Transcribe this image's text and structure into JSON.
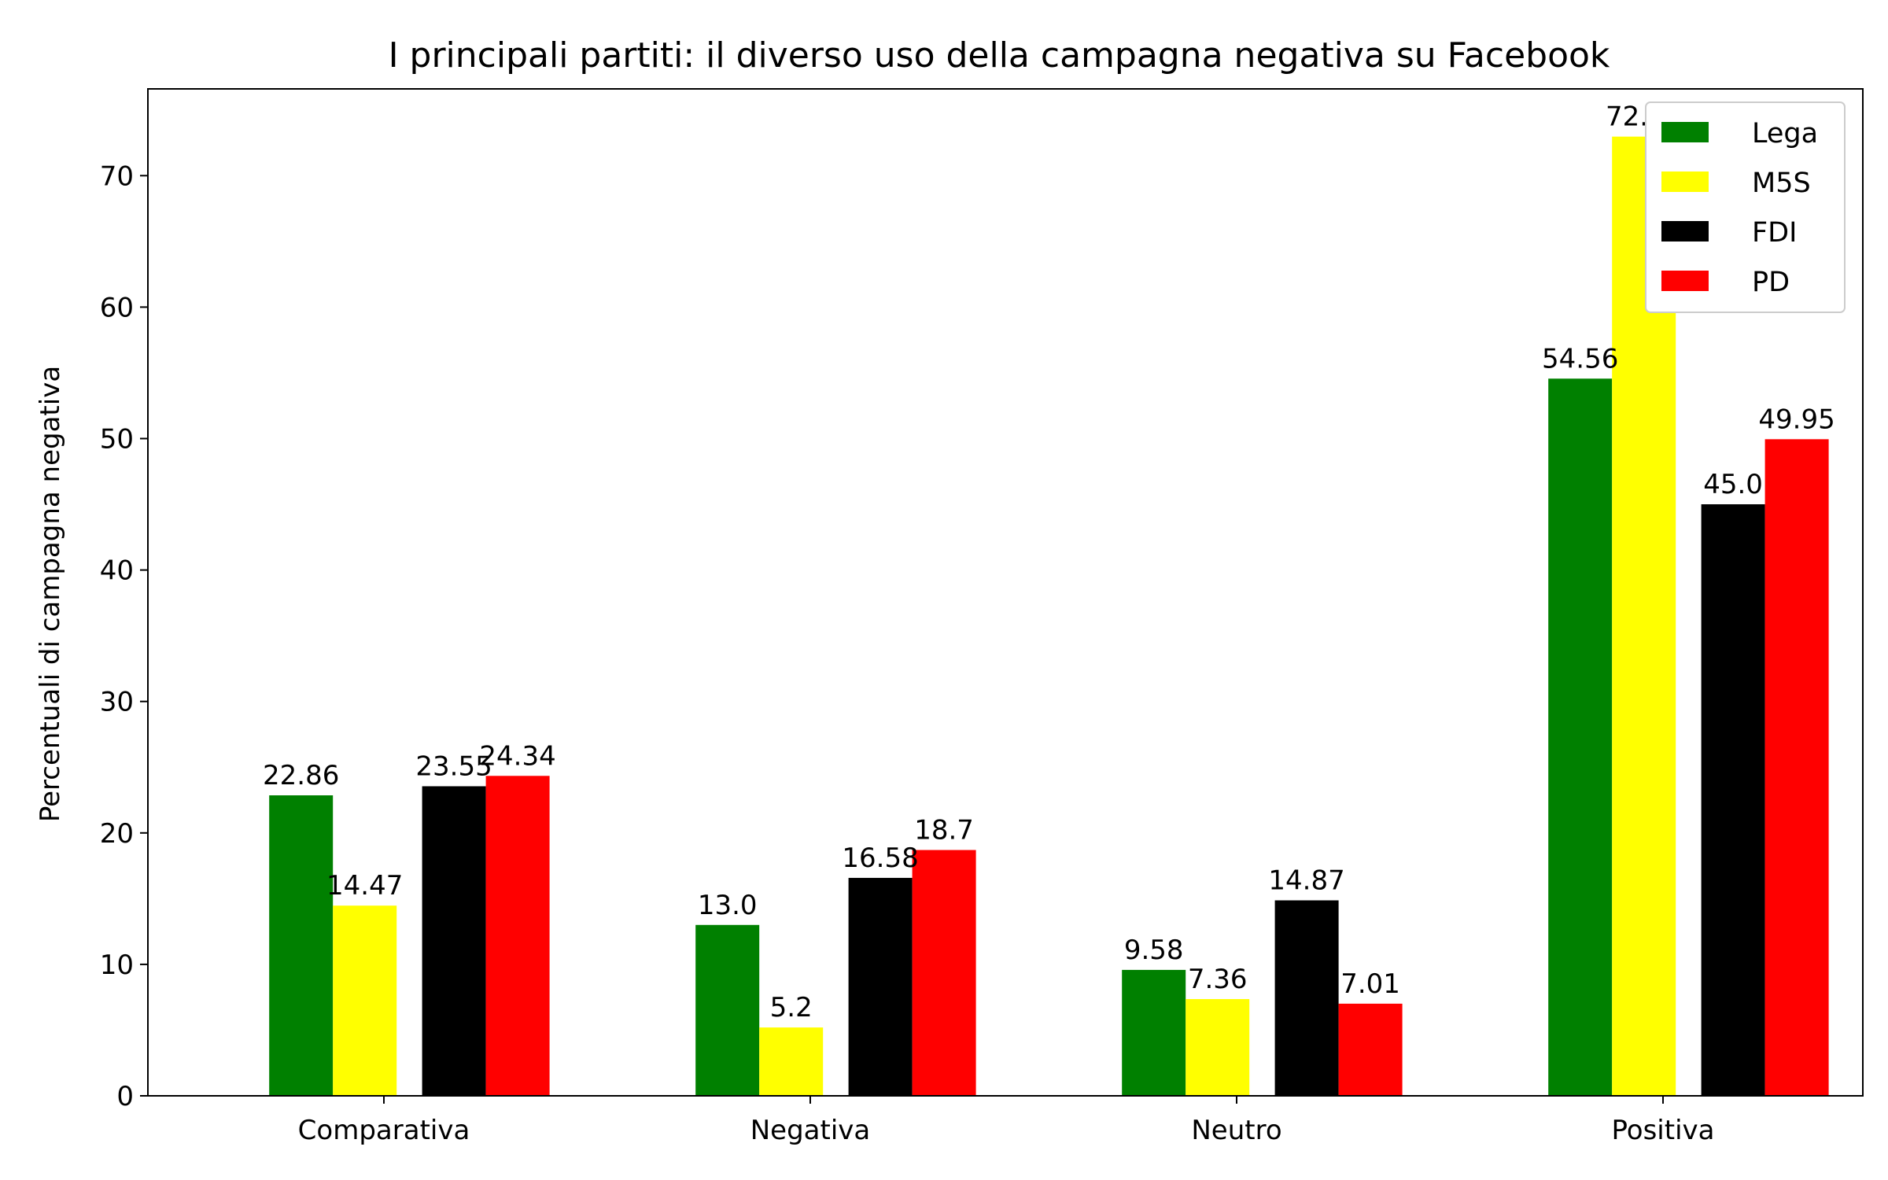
{
  "chart_data": {
    "type": "bar",
    "title": "I principali partiti: il diverso uso della campagna negativa su Facebook",
    "xlabel": "",
    "ylabel": "Percentuali di campagna negativa",
    "categories": [
      "Comparativa",
      "Negativa",
      "Neutro",
      "Positiva"
    ],
    "series": [
      {
        "name": "Lega",
        "color": "#008000",
        "values": [
          22.86,
          13.0,
          9.58,
          54.56
        ],
        "labels": [
          "22.86",
          "13.0",
          "9.58",
          "54.56"
        ]
      },
      {
        "name": "M5S",
        "color": "#ffff00",
        "values": [
          14.47,
          5.2,
          7.36,
          72.97
        ],
        "labels": [
          "14.47",
          "5.2",
          "7.36",
          "72.97"
        ]
      },
      {
        "name": "FDI",
        "color": "#000000",
        "values": [
          23.55,
          16.58,
          14.87,
          45.0
        ],
        "labels": [
          "23.55",
          "16.58",
          "14.87",
          "45.0"
        ]
      },
      {
        "name": "PD",
        "color": "#ff0000",
        "values": [
          24.34,
          18.7,
          7.01,
          49.95
        ],
        "labels": [
          "24.34",
          "18.7",
          "7.01",
          "49.95"
        ]
      }
    ],
    "ylim": [
      0,
      76.6
    ],
    "yticks": [
      0,
      10,
      20,
      30,
      40,
      50,
      60,
      70
    ],
    "grid": false,
    "legend_position": "top-right"
  }
}
